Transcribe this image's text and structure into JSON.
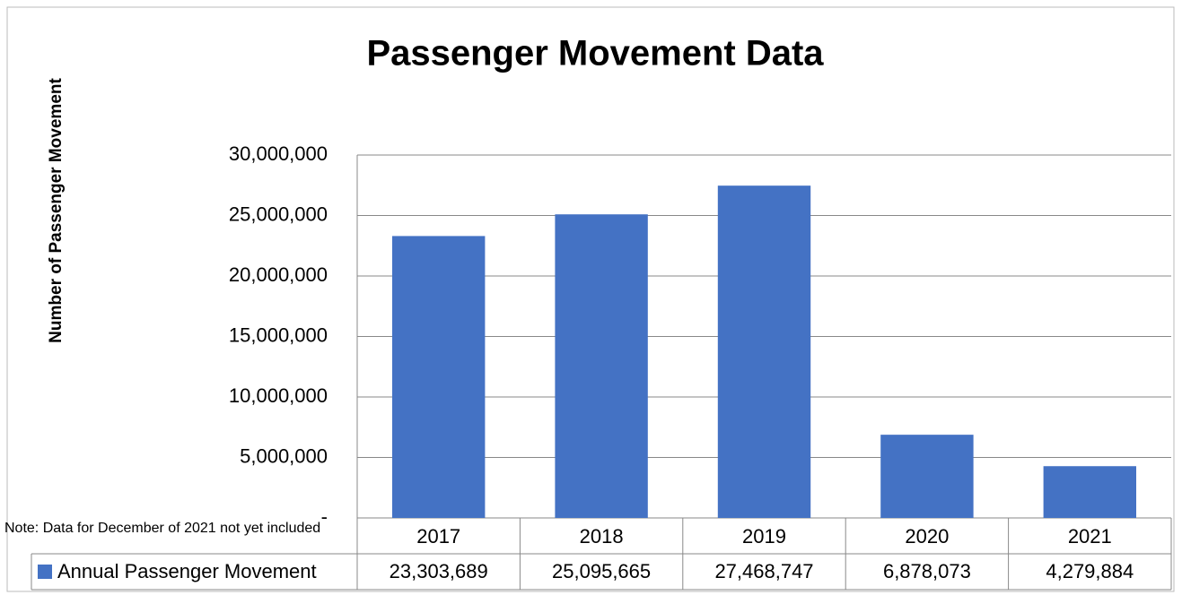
{
  "chart_data": {
    "type": "bar",
    "title": "Passenger Movement Data",
    "y_axis_label": "Number of Passenger Movement",
    "note": "Note: Data for December of 2021 not yet included",
    "categories": [
      "2017",
      "2018",
      "2019",
      "2020",
      "2021"
    ],
    "series": [
      {
        "name": "Annual Passenger Movement",
        "color": "#4472c4",
        "values": [
          23303689,
          25095665,
          27468747,
          6878073,
          4279884
        ],
        "value_labels": [
          "23,303,689",
          "25,095,665",
          "27,468,747",
          "6,878,073",
          "4,279,884"
        ]
      }
    ],
    "ylim": [
      0,
      30000000
    ],
    "yticks": [
      {
        "value": 0,
        "label": "-"
      },
      {
        "value": 5000000,
        "label": "5,000,000"
      },
      {
        "value": 10000000,
        "label": "10,000,000"
      },
      {
        "value": 15000000,
        "label": "15,000,000"
      },
      {
        "value": 20000000,
        "label": "20,000,000"
      },
      {
        "value": 25000000,
        "label": "25,000,000"
      },
      {
        "value": 30000000,
        "label": "30,000,000"
      }
    ],
    "grid": true,
    "data_table": true
  }
}
